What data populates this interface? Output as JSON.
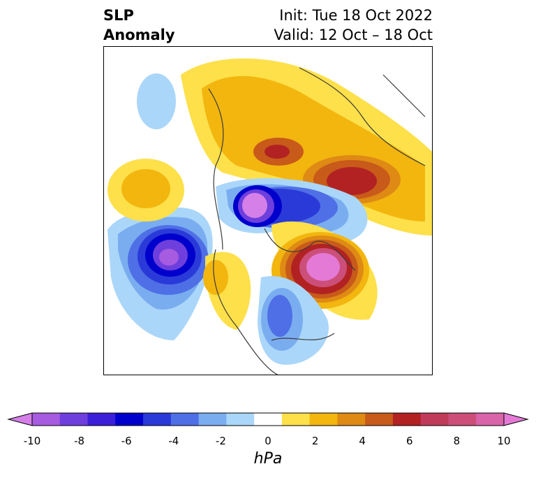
{
  "title": {
    "left_line1": "SLP",
    "left_line2": "Anomaly",
    "init": "Init: Tue 18 Oct 2022",
    "valid": "Valid: 12 Oct – 18 Oct"
  },
  "colorbar": {
    "label": "hPa",
    "ticks": [
      "-10",
      "-8",
      "-6",
      "-4",
      "-2",
      "0",
      "2",
      "4",
      "6",
      "8",
      "10"
    ],
    "colors": [
      "#d580e8",
      "#a65be0",
      "#6e3fdc",
      "#3c1fd8",
      "#0000cd",
      "#2a3ad8",
      "#4f6fe6",
      "#7aadf0",
      "#aad6f9",
      "#ffffff",
      "#fde04a",
      "#f2b60f",
      "#de8a14",
      "#c85a1a",
      "#b22222",
      "#c03a5a",
      "#cc4f7a",
      "#d964aa",
      "#e47ad6"
    ]
  }
}
